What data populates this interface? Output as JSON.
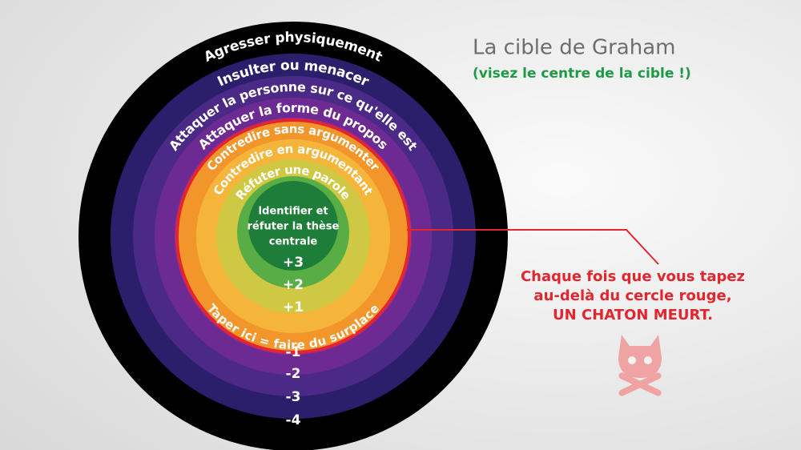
{
  "title": "La cible de Graham",
  "subtitle": "(visez le centre de la cible !)",
  "rings": [
    "Agresser physiquement",
    "Insulter ou menacer",
    "Attaquer la personne sur ce qu'elle est",
    "Attaquer la forme du propos",
    "Contredire sans argumenter",
    "Contredire en argumentant",
    "Réfuter une parole"
  ],
  "center": [
    "Identifier et",
    "réfuter la thèse",
    "centrale"
  ],
  "surplace": "Taper ici = faire du surplace",
  "scores": [
    "+3",
    "+2",
    "+1",
    "-1",
    "-2",
    "-3",
    "-4"
  ],
  "note": [
    "Chaque fois que vous tapez",
    "au-delà du cercle rouge,",
    "UN CHATON MEURT."
  ]
}
